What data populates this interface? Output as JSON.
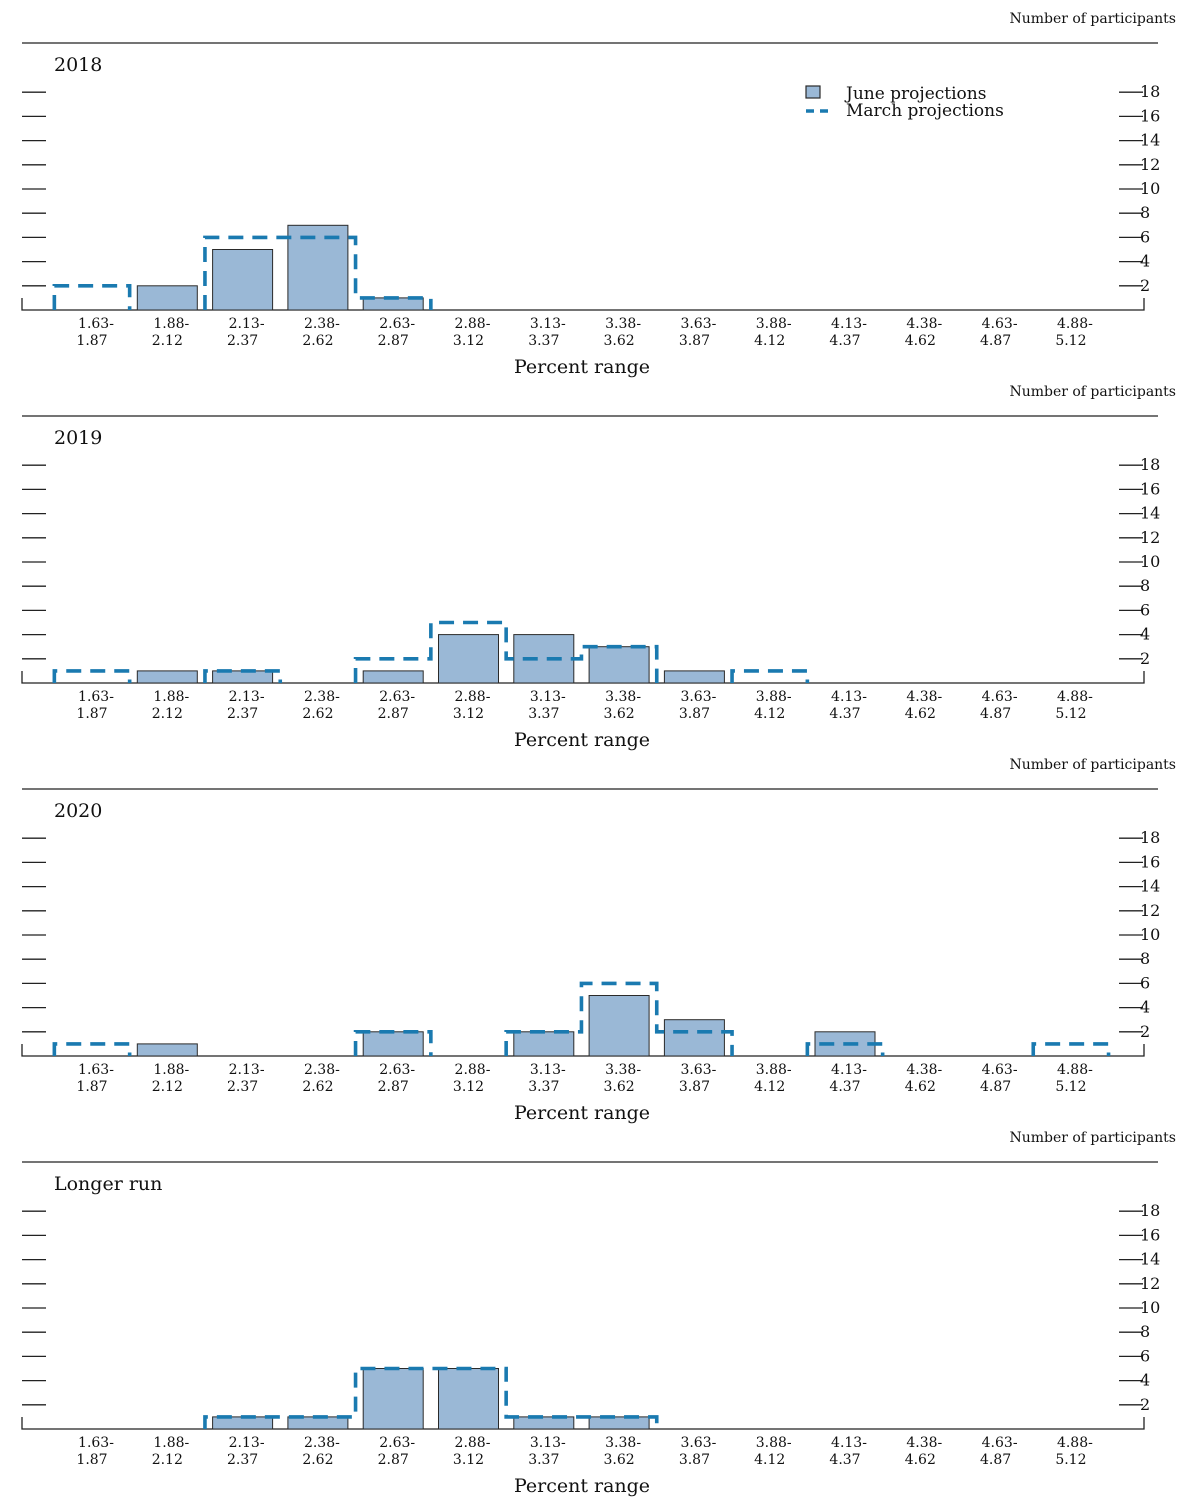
{
  "units_label": "Number of participants",
  "xlabel": "Percent range",
  "legend": {
    "june": "June projections",
    "march": "March projections"
  },
  "colors": {
    "june_fill": "#9ab8d6",
    "june_stroke": "#2a2a2a",
    "march": "#1a7ab0",
    "axis": "#222222"
  },
  "chart_data": [
    {
      "type": "bar",
      "title": "2018",
      "categories": [
        "1.63-\n1.87",
        "1.88-\n2.12",
        "2.13-\n2.37",
        "2.38-\n2.62",
        "2.63-\n2.87",
        "2.88-\n3.12",
        "3.13-\n3.37",
        "3.38-\n3.62",
        "3.63-\n3.87",
        "3.88-\n4.12",
        "4.13-\n4.37",
        "4.38-\n4.62",
        "4.63-\n4.87",
        "4.88-\n5.12"
      ],
      "series": [
        {
          "name": "June projections",
          "values": [
            0,
            2,
            5,
            7,
            1,
            0,
            0,
            0,
            0,
            0,
            0,
            0,
            0,
            0
          ]
        },
        {
          "name": "March projections",
          "values": [
            2,
            0,
            6,
            6,
            1,
            0,
            0,
            0,
            0,
            0,
            0,
            0,
            0,
            0
          ]
        }
      ],
      "xlabel": "Percent range",
      "ylabel": "Number of participants",
      "yticks": [
        2,
        4,
        6,
        8,
        10,
        12,
        14,
        16,
        18
      ],
      "ylim": [
        0,
        18
      ],
      "legend_position": "top-right"
    },
    {
      "type": "bar",
      "title": "2019",
      "categories": [
        "1.63-\n1.87",
        "1.88-\n2.12",
        "2.13-\n2.37",
        "2.38-\n2.62",
        "2.63-\n2.87",
        "2.88-\n3.12",
        "3.13-\n3.37",
        "3.38-\n3.62",
        "3.63-\n3.87",
        "3.88-\n4.12",
        "4.13-\n4.37",
        "4.38-\n4.62",
        "4.63-\n4.87",
        "4.88-\n5.12"
      ],
      "series": [
        {
          "name": "June projections",
          "values": [
            0,
            1,
            1,
            0,
            1,
            4,
            4,
            3,
            1,
            0,
            0,
            0,
            0,
            0
          ]
        },
        {
          "name": "March projections",
          "values": [
            1,
            0,
            1,
            0,
            2,
            5,
            2,
            3,
            0,
            1,
            0,
            0,
            0,
            0
          ]
        }
      ],
      "xlabel": "Percent range",
      "ylabel": "Number of participants",
      "yticks": [
        2,
        4,
        6,
        8,
        10,
        12,
        14,
        16,
        18
      ],
      "ylim": [
        0,
        18
      ]
    },
    {
      "type": "bar",
      "title": "2020",
      "categories": [
        "1.63-\n1.87",
        "1.88-\n2.12",
        "2.13-\n2.37",
        "2.38-\n2.62",
        "2.63-\n2.87",
        "2.88-\n3.12",
        "3.13-\n3.37",
        "3.38-\n3.62",
        "3.63-\n3.87",
        "3.88-\n4.12",
        "4.13-\n4.37",
        "4.38-\n4.62",
        "4.63-\n4.87",
        "4.88-\n5.12"
      ],
      "series": [
        {
          "name": "June projections",
          "values": [
            0,
            1,
            0,
            0,
            2,
            0,
            2,
            5,
            3,
            0,
            2,
            0,
            0,
            0
          ]
        },
        {
          "name": "March projections",
          "values": [
            1,
            0,
            0,
            0,
            2,
            0,
            2,
            6,
            2,
            0,
            1,
            0,
            0,
            1
          ]
        }
      ],
      "xlabel": "Percent range",
      "ylabel": "Number of participants",
      "yticks": [
        2,
        4,
        6,
        8,
        10,
        12,
        14,
        16,
        18
      ],
      "ylim": [
        0,
        18
      ]
    },
    {
      "type": "bar",
      "title": "Longer run",
      "categories": [
        "1.63-\n1.87",
        "1.88-\n2.12",
        "2.13-\n2.37",
        "2.38-\n2.62",
        "2.63-\n2.87",
        "2.88-\n3.12",
        "3.13-\n3.37",
        "3.38-\n3.62",
        "3.63-\n3.87",
        "3.88-\n4.12",
        "4.13-\n4.37",
        "4.38-\n4.62",
        "4.63-\n4.87",
        "4.88-\n5.12"
      ],
      "series": [
        {
          "name": "June projections",
          "values": [
            0,
            0,
            1,
            1,
            5,
            5,
            1,
            1,
            0,
            0,
            0,
            0,
            0,
            0
          ]
        },
        {
          "name": "March projections",
          "values": [
            0,
            0,
            1,
            1,
            5,
            5,
            1,
            1,
            0,
            0,
            0,
            0,
            0,
            0
          ]
        }
      ],
      "xlabel": "Percent range",
      "ylabel": "Number of participants",
      "yticks": [
        2,
        4,
        6,
        8,
        10,
        12,
        14,
        16,
        18
      ],
      "ylim": [
        0,
        18
      ]
    }
  ]
}
